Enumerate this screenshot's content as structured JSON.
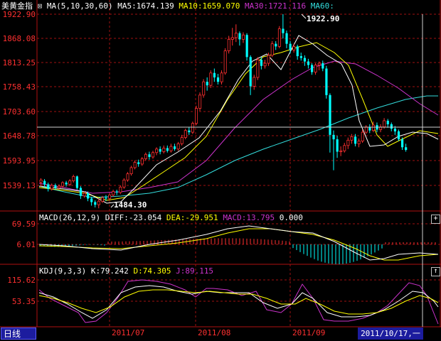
{
  "colors": {
    "up": "#ff3030",
    "down": "#00ffff",
    "ma5": "#ffffff",
    "ma10": "#ffff00",
    "ma30": "#cc33cc",
    "ma60": "#33dddd",
    "axis": "#b01010",
    "grid": "#a01010",
    "accent_cursor": "#d0d0d0"
  },
  "header": {
    "title": "美黄金指",
    "ma_params": "MA(5,10,30,60)",
    "ma5": "MA5:1674.139",
    "ma10": "MA10:1659.070",
    "ma30": "MA30:1721.116",
    "ma60": "MA60:"
  },
  "macd_header": {
    "name": "MACD(26,12,9)",
    "diff": "DIFF:-23.054",
    "dea": "DEA:-29.951",
    "macd": "MACD:13.795",
    "extra": "0.000"
  },
  "kdj_header": {
    "name": "KDJ(9,3,3)",
    "k": "K:79.242",
    "d": "D:74.305",
    "j": "J:89.115"
  },
  "price_axis": [
    "1922.90",
    "1868.08",
    "1813.25",
    "1758.43",
    "1703.60",
    "1648.78",
    "1593.95",
    "1539.13"
  ],
  "macd_axis": [
    "69.59",
    "6.01"
  ],
  "kdj_axis": [
    "115.62",
    "53.35"
  ],
  "date_labels": [
    "2011/07",
    "2011/08",
    "2011/09"
  ],
  "footer": {
    "period": "日线",
    "cursor_date": "2011/10/17,一"
  },
  "markers": {
    "high": "1922.90",
    "low": "1484.30"
  },
  "chart_data": {
    "type": "candlestick",
    "title": "美黄金指",
    "ylim": [
      1484.3,
      1935
    ],
    "price_ticks": [
      1922.9,
      1868.08,
      1813.25,
      1758.43,
      1703.6,
      1648.78,
      1593.95,
      1539.13
    ],
    "candles": [
      [
        1543,
        1548,
        1533,
        1552
      ],
      [
        1546,
        1538,
        1532,
        1550
      ],
      [
        1538,
        1528,
        1522,
        1542
      ],
      [
        1528,
        1536,
        1524,
        1540
      ],
      [
        1536,
        1530,
        1526,
        1540
      ],
      [
        1530,
        1534,
        1526,
        1538
      ],
      [
        1534,
        1542,
        1530,
        1545
      ],
      [
        1542,
        1538,
        1533,
        1546
      ],
      [
        1538,
        1546,
        1534,
        1550
      ],
      [
        1546,
        1556,
        1542,
        1560
      ],
      [
        1556,
        1530,
        1526,
        1558
      ],
      [
        1530,
        1512,
        1505,
        1534
      ],
      [
        1512,
        1518,
        1508,
        1522
      ],
      [
        1518,
        1506,
        1500,
        1522
      ],
      [
        1506,
        1498,
        1490,
        1510
      ],
      [
        1498,
        1492,
        1486,
        1502
      ],
      [
        1492,
        1500,
        1484,
        1506
      ],
      [
        1500,
        1508,
        1496,
        1512
      ],
      [
        1508,
        1506,
        1500,
        1514
      ],
      [
        1506,
        1514,
        1502,
        1518
      ],
      [
        1514,
        1522,
        1510,
        1526
      ],
      [
        1522,
        1520,
        1514,
        1526
      ],
      [
        1520,
        1532,
        1516,
        1536
      ],
      [
        1532,
        1548,
        1528,
        1552
      ],
      [
        1548,
        1562,
        1544,
        1566
      ],
      [
        1562,
        1576,
        1558,
        1580
      ],
      [
        1576,
        1588,
        1572,
        1592
      ],
      [
        1588,
        1584,
        1578,
        1594
      ],
      [
        1584,
        1596,
        1580,
        1600
      ],
      [
        1596,
        1606,
        1592,
        1610
      ],
      [
        1606,
        1600,
        1594,
        1612
      ],
      [
        1600,
        1610,
        1596,
        1614
      ],
      [
        1610,
        1618,
        1604,
        1622
      ],
      [
        1618,
        1612,
        1606,
        1624
      ],
      [
        1612,
        1620,
        1608,
        1626
      ],
      [
        1620,
        1614,
        1610,
        1626
      ],
      [
        1614,
        1624,
        1610,
        1630
      ],
      [
        1624,
        1618,
        1614,
        1630
      ],
      [
        1618,
        1630,
        1614,
        1634
      ],
      [
        1630,
        1644,
        1626,
        1650
      ],
      [
        1644,
        1660,
        1640,
        1664
      ],
      [
        1660,
        1656,
        1650,
        1668
      ],
      [
        1656,
        1676,
        1652,
        1680
      ],
      [
        1676,
        1710,
        1672,
        1716
      ],
      [
        1710,
        1740,
        1704,
        1746
      ],
      [
        1740,
        1770,
        1734,
        1776
      ],
      [
        1770,
        1762,
        1750,
        1780
      ],
      [
        1762,
        1790,
        1756,
        1796
      ],
      [
        1790,
        1780,
        1770,
        1800
      ],
      [
        1780,
        1770,
        1764,
        1788
      ],
      [
        1770,
        1790,
        1764,
        1796
      ],
      [
        1790,
        1840,
        1786,
        1846
      ],
      [
        1840,
        1866,
        1834,
        1874
      ],
      [
        1866,
        1870,
        1852,
        1892
      ],
      [
        1870,
        1880,
        1860,
        1900
      ],
      [
        1880,
        1866,
        1852,
        1884
      ],
      [
        1866,
        1876,
        1858,
        1882
      ],
      [
        1876,
        1826,
        1818,
        1880
      ],
      [
        1826,
        1760,
        1740,
        1830
      ],
      [
        1760,
        1780,
        1752,
        1786
      ],
      [
        1780,
        1820,
        1774,
        1826
      ],
      [
        1820,
        1806,
        1798,
        1826
      ],
      [
        1806,
        1812,
        1800,
        1820
      ],
      [
        1812,
        1830,
        1806,
        1836
      ],
      [
        1830,
        1856,
        1826,
        1862
      ],
      [
        1856,
        1850,
        1842,
        1862
      ],
      [
        1850,
        1890,
        1846,
        1896
      ],
      [
        1890,
        1880,
        1868,
        1922.9
      ],
      [
        1880,
        1856,
        1846,
        1886
      ],
      [
        1856,
        1842,
        1834,
        1862
      ],
      [
        1842,
        1850,
        1836,
        1856
      ],
      [
        1850,
        1828,
        1820,
        1854
      ],
      [
        1828,
        1824,
        1818,
        1836
      ],
      [
        1824,
        1816,
        1806,
        1830
      ],
      [
        1816,
        1808,
        1800,
        1822
      ],
      [
        1808,
        1792,
        1786,
        1812
      ],
      [
        1792,
        1808,
        1786,
        1812
      ],
      [
        1808,
        1812,
        1796,
        1816
      ],
      [
        1812,
        1800,
        1794,
        1818
      ],
      [
        1800,
        1740,
        1732,
        1806
      ],
      [
        1740,
        1650,
        1610,
        1744
      ],
      [
        1650,
        1640,
        1570,
        1660
      ],
      [
        1640,
        1612,
        1598,
        1648
      ],
      [
        1612,
        1614,
        1602,
        1624
      ],
      [
        1614,
        1626,
        1610,
        1632
      ],
      [
        1626,
        1638,
        1618,
        1644
      ],
      [
        1638,
        1646,
        1630,
        1652
      ],
      [
        1646,
        1630,
        1624,
        1652
      ],
      [
        1630,
        1636,
        1622,
        1642
      ],
      [
        1636,
        1656,
        1632,
        1662
      ],
      [
        1656,
        1668,
        1652,
        1672
      ],
      [
        1668,
        1660,
        1654,
        1674
      ],
      [
        1660,
        1672,
        1656,
        1680
      ],
      [
        1672,
        1662,
        1656,
        1678
      ],
      [
        1662,
        1668,
        1656,
        1674
      ],
      [
        1668,
        1682,
        1664,
        1688
      ],
      [
        1682,
        1674,
        1666,
        1686
      ],
      [
        1674,
        1664,
        1658,
        1678
      ],
      [
        1664,
        1658,
        1650,
        1670
      ],
      [
        1658,
        1640,
        1636,
        1662
      ],
      [
        1640,
        1622,
        1616,
        1644
      ],
      [
        1622,
        1616,
        1612,
        1630
      ]
    ],
    "ma30_tail": [
      1720,
      1724,
      1726,
      1722
    ]
  }
}
